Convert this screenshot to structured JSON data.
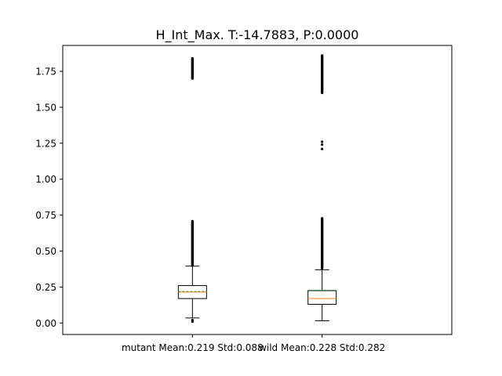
{
  "chart_data": {
    "type": "box",
    "title": "H_Int_Max. T:-14.7883, P:0.0000",
    "xlabel": "",
    "ylabel": "",
    "categories": [
      "mutant Mean:0.219 Std:0.088",
      "wild Mean:0.228 Std:0.282"
    ],
    "ylim": [
      -0.08,
      1.93
    ],
    "yticks": [
      0.0,
      0.25,
      0.5,
      0.75,
      1.0,
      1.25,
      1.5,
      1.75
    ],
    "ytick_labels": [
      "0.00",
      "0.25",
      "0.50",
      "0.75",
      "1.00",
      "1.25",
      "1.50",
      "1.75"
    ],
    "grid": false,
    "boxes": [
      {
        "whisker_low": 0.035,
        "q1": 0.17,
        "median": 0.215,
        "q3": 0.26,
        "whisker_high": 0.395,
        "mean": 0.219,
        "outliers_high_range": [
          0.4,
          0.71
        ],
        "outliers_high_cluster": [
          1.7,
          1.84
        ],
        "outliers_low": [
          0.01,
          0.02
        ]
      },
      {
        "whisker_low": 0.015,
        "q1": 0.13,
        "median": 0.17,
        "q3": 0.225,
        "whisker_high": 0.37,
        "mean": 0.228,
        "outliers_high_range": [
          0.38,
          0.73
        ],
        "outliers_mid": [
          1.21,
          1.24,
          1.26
        ],
        "outliers_high_cluster": [
          1.6,
          1.86
        ]
      }
    ],
    "colors": {
      "box": "#000000",
      "median": "#ff7f0e",
      "mean": "#2ca02c"
    }
  }
}
